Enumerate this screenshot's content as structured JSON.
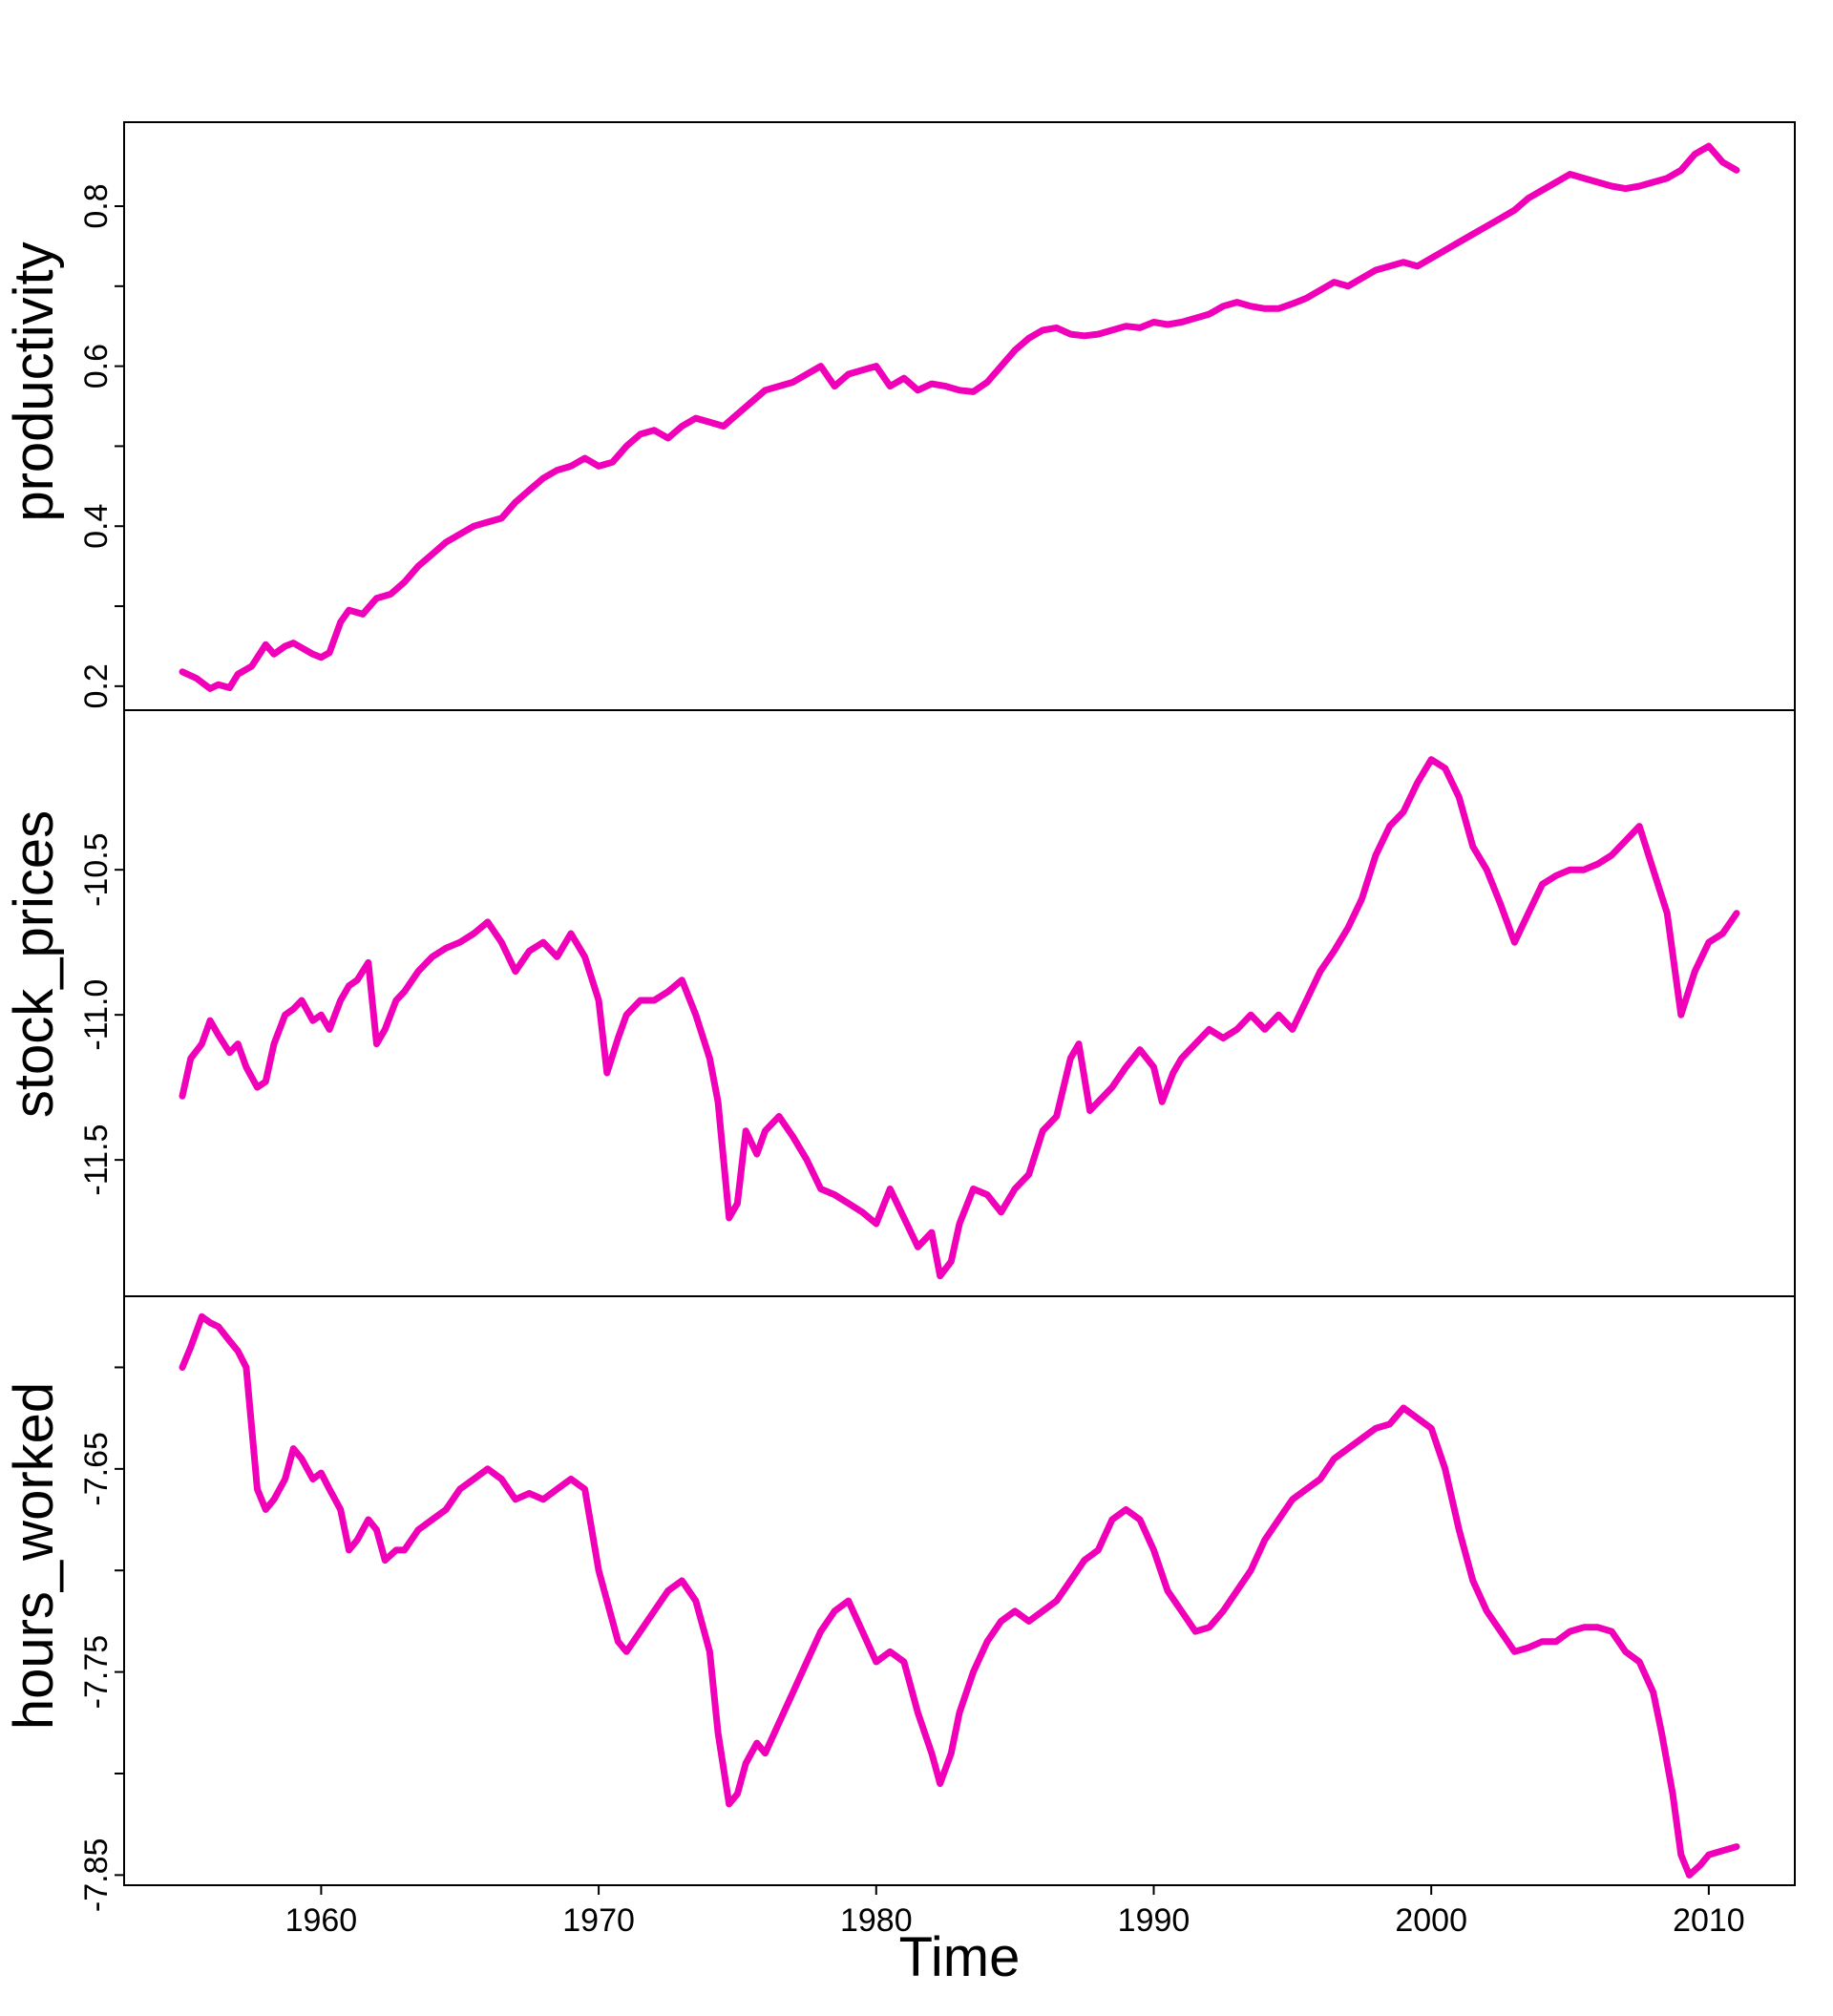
{
  "chart_data": [
    {
      "type": "line",
      "ylabel": "productivity",
      "xlim": [
        1952.9,
        2013.1
      ],
      "ylim": [
        0.17,
        0.905
      ],
      "yticks": [
        0.2,
        0.4,
        0.6,
        0.8
      ],
      "ytick_labels": [
        "0.2",
        "0.4",
        "0.6",
        "0.8"
      ],
      "minor_yticks": [
        0.3,
        0.5,
        0.7
      ],
      "line_color": "#f000b8",
      "series": [
        {
          "x": [
            1955.0,
            1955.5,
            1956.0,
            1956.3,
            1956.7,
            1957.0,
            1957.5,
            1958.0,
            1958.3,
            1958.7,
            1959.0,
            1959.3,
            1959.7,
            1960.0,
            1960.3,
            1960.7,
            1961.0,
            1961.5,
            1962.0,
            1962.5,
            1963.0,
            1963.5,
            1964.0,
            1964.5,
            1965.0,
            1965.5,
            1966.0,
            1966.5,
            1967.0,
            1967.5,
            1968.0,
            1968.5,
            1969.0,
            1969.5,
            1970.0,
            1970.5,
            1971.0,
            1971.5,
            1972.0,
            1972.5,
            1973.0,
            1973.5,
            1974.0,
            1974.5,
            1975.0,
            1975.5,
            1976.0,
            1976.5,
            1977.0,
            1977.5,
            1978.0,
            1978.5,
            1979.0,
            1979.5,
            1980.0,
            1980.5,
            1981.0,
            1981.5,
            1982.0,
            1982.5,
            1983.0,
            1983.5,
            1984.0,
            1984.5,
            1985.0,
            1985.5,
            1986.0,
            1986.5,
            1987.0,
            1987.5,
            1988.0,
            1988.5,
            1989.0,
            1989.5,
            1990.0,
            1990.5,
            1991.0,
            1991.5,
            1992.0,
            1992.5,
            1993.0,
            1993.5,
            1994.0,
            1994.5,
            1995.0,
            1995.5,
            1996.0,
            1996.5,
            1997.0,
            1997.5,
            1998.0,
            1998.5,
            1999.0,
            1999.5,
            2000.0,
            2000.5,
            2001.0,
            2001.5,
            2002.0,
            2002.5,
            2003.0,
            2003.5,
            2004.0,
            2004.5,
            2005.0,
            2005.5,
            2006.0,
            2006.5,
            2007.0,
            2007.5,
            2008.0,
            2008.5,
            2009.0,
            2009.5,
            2010.0,
            2010.5,
            2011.0
          ],
          "y": [
            0.218,
            0.21,
            0.197,
            0.202,
            0.198,
            0.215,
            0.225,
            0.252,
            0.24,
            0.25,
            0.254,
            0.248,
            0.24,
            0.236,
            0.242,
            0.28,
            0.295,
            0.29,
            0.31,
            0.315,
            0.33,
            0.35,
            0.365,
            0.38,
            0.39,
            0.4,
            0.405,
            0.41,
            0.43,
            0.445,
            0.46,
            0.47,
            0.475,
            0.485,
            0.475,
            0.48,
            0.5,
            0.515,
            0.52,
            0.51,
            0.525,
            0.535,
            0.53,
            0.525,
            0.54,
            0.555,
            0.57,
            0.575,
            0.58,
            0.59,
            0.6,
            0.575,
            0.59,
            0.595,
            0.6,
            0.575,
            0.585,
            0.57,
            0.578,
            0.575,
            0.57,
            0.568,
            0.58,
            0.6,
            0.62,
            0.635,
            0.645,
            0.648,
            0.64,
            0.638,
            0.64,
            0.645,
            0.65,
            0.648,
            0.655,
            0.652,
            0.655,
            0.66,
            0.665,
            0.675,
            0.68,
            0.675,
            0.672,
            0.672,
            0.678,
            0.685,
            0.695,
            0.705,
            0.7,
            0.71,
            0.72,
            0.725,
            0.73,
            0.725,
            0.735,
            0.745,
            0.755,
            0.765,
            0.775,
            0.785,
            0.795,
            0.81,
            0.82,
            0.83,
            0.84,
            0.835,
            0.83,
            0.825,
            0.822,
            0.825,
            0.83,
            0.835,
            0.845,
            0.865,
            0.875,
            0.855,
            0.845
          ]
        }
      ]
    },
    {
      "type": "line",
      "ylabel": "stock_prices",
      "xlim": [
        1952.9,
        2013.1
      ],
      "ylim": [
        -11.97,
        -9.95
      ],
      "yticks": [
        -11.5,
        -11.0,
        -10.5
      ],
      "ytick_labels": [
        "-11.5",
        "-11.0",
        "-10.5"
      ],
      "line_color": "#f000b8",
      "series": [
        {
          "x": [
            1955.0,
            1955.3,
            1955.7,
            1956.0,
            1956.3,
            1956.7,
            1957.0,
            1957.3,
            1957.7,
            1958.0,
            1958.3,
            1958.7,
            1959.0,
            1959.3,
            1959.7,
            1960.0,
            1960.3,
            1960.7,
            1961.0,
            1961.3,
            1961.7,
            1962.0,
            1962.3,
            1962.7,
            1963.0,
            1963.5,
            1964.0,
            1964.5,
            1965.0,
            1965.5,
            1966.0,
            1966.5,
            1967.0,
            1967.5,
            1968.0,
            1968.5,
            1969.0,
            1969.5,
            1970.0,
            1970.3,
            1970.7,
            1971.0,
            1971.5,
            1972.0,
            1972.5,
            1973.0,
            1973.5,
            1974.0,
            1974.3,
            1974.7,
            1975.0,
            1975.3,
            1975.7,
            1976.0,
            1976.5,
            1977.0,
            1977.5,
            1978.0,
            1978.5,
            1979.0,
            1979.5,
            1980.0,
            1980.5,
            1981.0,
            1981.5,
            1982.0,
            1982.3,
            1982.7,
            1983.0,
            1983.5,
            1984.0,
            1984.5,
            1985.0,
            1985.5,
            1986.0,
            1986.5,
            1987.0,
            1987.3,
            1987.7,
            1988.0,
            1988.5,
            1989.0,
            1989.5,
            1990.0,
            1990.3,
            1990.7,
            1991.0,
            1991.5,
            1992.0,
            1992.5,
            1993.0,
            1993.5,
            1994.0,
            1994.5,
            1995.0,
            1995.5,
            1996.0,
            1996.5,
            1997.0,
            1997.5,
            1998.0,
            1998.5,
            1999.0,
            1999.5,
            2000.0,
            2000.5,
            2001.0,
            2001.5,
            2002.0,
            2002.5,
            2003.0,
            2003.5,
            2004.0,
            2004.5,
            2005.0,
            2005.5,
            2006.0,
            2006.5,
            2007.0,
            2007.5,
            2008.0,
            2008.5,
            2009.0,
            2009.5,
            2010.0,
            2010.5,
            2011.0
          ],
          "y": [
            -11.28,
            -11.15,
            -11.1,
            -11.02,
            -11.07,
            -11.13,
            -11.1,
            -11.18,
            -11.25,
            -11.23,
            -11.1,
            -11.0,
            -10.98,
            -10.95,
            -11.02,
            -11.0,
            -11.05,
            -10.95,
            -10.9,
            -10.88,
            -10.82,
            -11.1,
            -11.05,
            -10.95,
            -10.92,
            -10.85,
            -10.8,
            -10.77,
            -10.75,
            -10.72,
            -10.68,
            -10.75,
            -10.85,
            -10.78,
            -10.75,
            -10.8,
            -10.72,
            -10.8,
            -10.95,
            -11.2,
            -11.08,
            -11.0,
            -10.95,
            -10.95,
            -10.92,
            -10.88,
            -11.0,
            -11.15,
            -11.3,
            -11.7,
            -11.65,
            -11.4,
            -11.48,
            -11.4,
            -11.35,
            -11.42,
            -11.5,
            -11.6,
            -11.62,
            -11.65,
            -11.68,
            -11.72,
            -11.6,
            -11.7,
            -11.8,
            -11.75,
            -11.9,
            -11.85,
            -11.72,
            -11.6,
            -11.62,
            -11.68,
            -11.6,
            -11.55,
            -11.4,
            -11.35,
            -11.15,
            -11.1,
            -11.33,
            -11.3,
            -11.25,
            -11.18,
            -11.12,
            -11.18,
            -11.3,
            -11.2,
            -11.15,
            -11.1,
            -11.05,
            -11.08,
            -11.05,
            -11.0,
            -11.05,
            -11.0,
            -11.05,
            -10.95,
            -10.85,
            -10.78,
            -10.7,
            -10.6,
            -10.45,
            -10.35,
            -10.3,
            -10.2,
            -10.12,
            -10.15,
            -10.25,
            -10.42,
            -10.5,
            -10.62,
            -10.75,
            -10.65,
            -10.55,
            -10.52,
            -10.5,
            -10.5,
            -10.48,
            -10.45,
            -10.4,
            -10.35,
            -10.5,
            -10.65,
            -11.0,
            -10.85,
            -10.75,
            -10.72,
            -10.65
          ]
        }
      ]
    },
    {
      "type": "line",
      "ylabel": "hours_worked",
      "xlabel": "Time",
      "xlim": [
        1952.9,
        2013.1
      ],
      "ylim": [
        -7.855,
        -7.565
      ],
      "xticks": [
        1960,
        1970,
        1980,
        1990,
        2000,
        2010
      ],
      "xtick_labels": [
        "1960",
        "1970",
        "1980",
        "1990",
        "2000",
        "2010"
      ],
      "yticks": [
        -7.85,
        -7.75,
        -7.65
      ],
      "ytick_labels": [
        "-7.85",
        "-7.75",
        "-7.65"
      ],
      "minor_yticks": [
        -7.8,
        -7.7,
        -7.6
      ],
      "line_color": "#f000b8",
      "series": [
        {
          "x": [
            1955.0,
            1955.3,
            1955.7,
            1956.0,
            1956.3,
            1956.7,
            1957.0,
            1957.3,
            1957.7,
            1958.0,
            1958.3,
            1958.7,
            1959.0,
            1959.3,
            1959.7,
            1960.0,
            1960.3,
            1960.7,
            1961.0,
            1961.3,
            1961.7,
            1962.0,
            1962.3,
            1962.7,
            1963.0,
            1963.5,
            1964.0,
            1964.5,
            1965.0,
            1965.5,
            1966.0,
            1966.5,
            1967.0,
            1967.5,
            1968.0,
            1968.5,
            1969.0,
            1969.5,
            1970.0,
            1970.3,
            1970.7,
            1971.0,
            1971.5,
            1972.0,
            1972.5,
            1973.0,
            1973.5,
            1974.0,
            1974.3,
            1974.7,
            1975.0,
            1975.3,
            1975.7,
            1976.0,
            1976.5,
            1977.0,
            1977.5,
            1978.0,
            1978.5,
            1979.0,
            1979.5,
            1980.0,
            1980.5,
            1981.0,
            1981.5,
            1982.0,
            1982.3,
            1982.7,
            1983.0,
            1983.5,
            1984.0,
            1984.5,
            1985.0,
            1985.5,
            1986.0,
            1986.5,
            1987.0,
            1987.5,
            1988.0,
            1988.5,
            1989.0,
            1989.5,
            1990.0,
            1990.5,
            1991.0,
            1991.5,
            1992.0,
            1992.5,
            1993.0,
            1993.5,
            1994.0,
            1994.5,
            1995.0,
            1995.5,
            1996.0,
            1996.5,
            1997.0,
            1997.5,
            1998.0,
            1998.5,
            1999.0,
            1999.5,
            2000.0,
            2000.5,
            2001.0,
            2001.5,
            2002.0,
            2002.5,
            2003.0,
            2003.5,
            2004.0,
            2004.5,
            2005.0,
            2005.5,
            2006.0,
            2006.5,
            2007.0,
            2007.5,
            2008.0,
            2008.3,
            2008.7,
            2009.0,
            2009.3,
            2009.7,
            2010.0,
            2010.5,
            2011.0
          ],
          "y": [
            -7.6,
            -7.59,
            -7.575,
            -7.578,
            -7.58,
            -7.587,
            -7.592,
            -7.6,
            -7.66,
            -7.67,
            -7.665,
            -7.655,
            -7.64,
            -7.645,
            -7.655,
            -7.652,
            -7.66,
            -7.67,
            -7.69,
            -7.685,
            -7.675,
            -7.68,
            -7.695,
            -7.69,
            -7.69,
            -7.68,
            -7.675,
            -7.67,
            -7.66,
            -7.655,
            -7.65,
            -7.655,
            -7.665,
            -7.662,
            -7.665,
            -7.66,
            -7.655,
            -7.66,
            -7.7,
            -7.715,
            -7.735,
            -7.74,
            -7.73,
            -7.72,
            -7.71,
            -7.705,
            -7.715,
            -7.74,
            -7.78,
            -7.815,
            -7.81,
            -7.795,
            -7.785,
            -7.79,
            -7.775,
            -7.76,
            -7.745,
            -7.73,
            -7.72,
            -7.715,
            -7.73,
            -7.745,
            -7.74,
            -7.745,
            -7.77,
            -7.79,
            -7.805,
            -7.79,
            -7.77,
            -7.75,
            -7.735,
            -7.725,
            -7.72,
            -7.725,
            -7.72,
            -7.715,
            -7.705,
            -7.695,
            -7.69,
            -7.675,
            -7.67,
            -7.675,
            -7.69,
            -7.71,
            -7.72,
            -7.73,
            -7.728,
            -7.72,
            -7.71,
            -7.7,
            -7.685,
            -7.675,
            -7.665,
            -7.66,
            -7.655,
            -7.645,
            -7.64,
            -7.635,
            -7.63,
            -7.628,
            -7.62,
            -7.625,
            -7.63,
            -7.65,
            -7.68,
            -7.705,
            -7.72,
            -7.73,
            -7.74,
            -7.738,
            -7.735,
            -7.735,
            -7.73,
            -7.728,
            -7.728,
            -7.73,
            -7.74,
            -7.745,
            -7.76,
            -7.78,
            -7.81,
            -7.84,
            -7.85,
            -7.845,
            -7.84,
            -7.838,
            -7.836
          ]
        }
      ]
    }
  ]
}
